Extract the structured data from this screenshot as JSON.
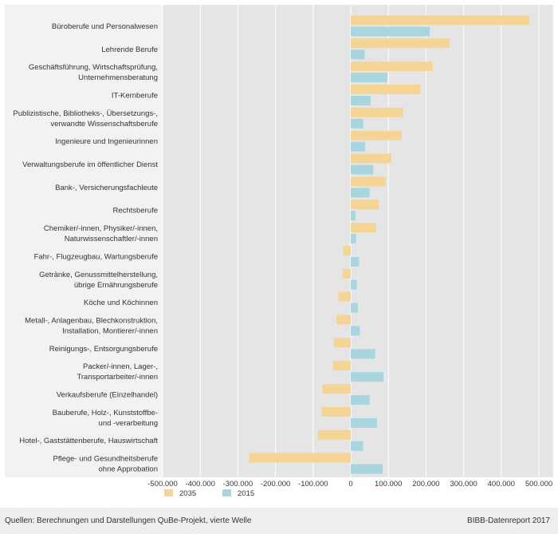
{
  "chart_data": {
    "type": "bar",
    "orientation": "horizontal",
    "categories": [
      "Büroberufe und Personalwesen",
      "Lehrende Berufe",
      "Geschäftsführung, Wirtschaftsprüfung,\nUnternehmensberatung",
      "IT-Kernberufe",
      "Publizistische, Bibliotheks-, Übersetzungs-,\nverwandte Wissenschaftsberufe",
      "Ingenieure und Ingenieurinnen",
      "Verwaltungsberufe im öffentlicher Dienst",
      "Bank-, Versicherungsfachleute",
      "Rechtsberufe",
      "Chemiker/-innen, Physiker/-innen,\nNaturwissenschaftler/-innen",
      "Fahr-, Flugzeugbau, Wartungsberufe",
      "Getränke, Genussmittelherstellung,\nübrige Ernährungsberufe",
      "Köche und Köchinnen",
      "Metall-, Anlagenbau, Blechkonstruktion,\nInstallation, Montierer/-innen",
      "Reinigungs-, Entsorgungsberufe",
      "Packer/-innen, Lager-,\nTransportarbeiter/-innen",
      "Verkaufsberufe (Einzelhandel)",
      "Bauberufe, Holz-, Kunststoffbe-\nund -verarbeitung",
      "Hotel-, Gaststättenberufe, Hauswirtschaft",
      "Pflege- und Gesundheitsberufe\nohne Approbation"
    ],
    "series": [
      {
        "name": "2035",
        "color": "#f5d596",
        "values": [
          475000,
          263000,
          218000,
          185000,
          140000,
          135000,
          108000,
          93000,
          75000,
          68000,
          -20000,
          -22000,
          -33000,
          -38000,
          -45000,
          -47000,
          -75000,
          -78000,
          -88000,
          -270000
        ]
      },
      {
        "name": "2015",
        "color": "#a8d5de",
        "values": [
          210000,
          37000,
          97000,
          53000,
          33000,
          38000,
          60000,
          50000,
          12000,
          14000,
          22000,
          16000,
          19000,
          24000,
          65000,
          87000,
          50000,
          70000,
          33000,
          85000
        ]
      }
    ],
    "xlim": [
      -500000,
      500000
    ],
    "xticks": [
      -500000,
      -400000,
      -300000,
      -200000,
      -100000,
      0,
      100000,
      200000,
      300000,
      400000,
      500000
    ],
    "xtick_labels": [
      "-500.000",
      "-400.000",
      "-300.000",
      "-200.000",
      "-100.000",
      "0",
      "100.000",
      "200.000",
      "300.000",
      "400.000",
      "500.000"
    ],
    "legend_position": "bottom-left",
    "grid": true,
    "title": "",
    "xlabel": "",
    "ylabel": ""
  },
  "footer": {
    "source": "Quellen: Berechnungen und Darstellungen QuBe-Projekt, vierte Welle",
    "credit": "BIBB-Datenreport 2017"
  },
  "colors": {
    "plot_background": "#e5e5e5",
    "category_band": "#f2f2f2",
    "grid": "#ffffff",
    "footer_background": "#eeeeee"
  }
}
